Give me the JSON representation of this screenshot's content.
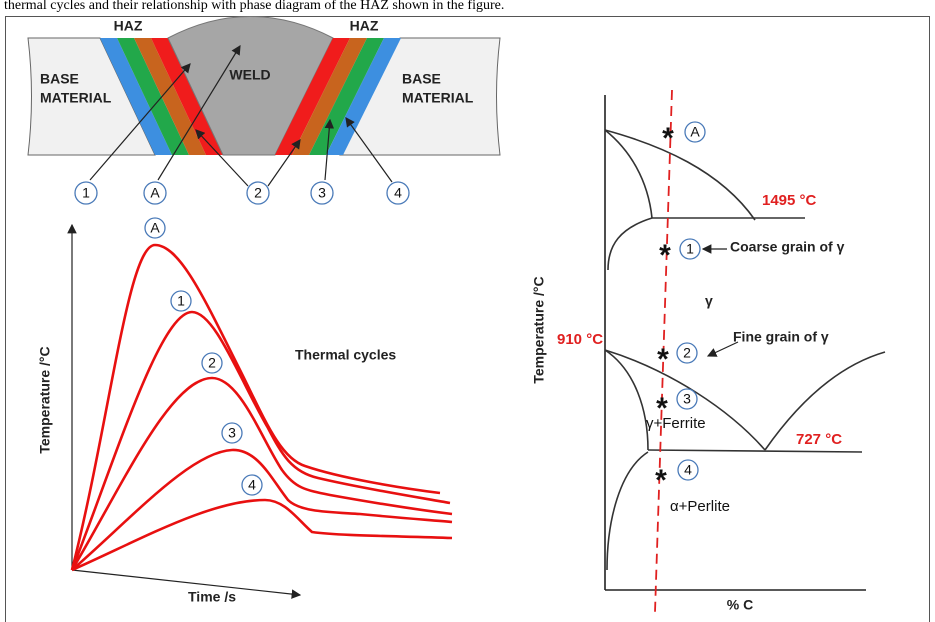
{
  "caption": "thermal cycles and their relationship with phase diagram of the HAZ shown in the figure.",
  "weld_section": {
    "haz_left": "HAZ",
    "haz_right": "HAZ",
    "base_left": [
      "BASE",
      "MATERIAL"
    ],
    "base_right": [
      "BASE",
      "MATERIAL"
    ],
    "weld": "WELD",
    "markers": [
      "1",
      "A",
      "2",
      "3",
      "4"
    ]
  },
  "thermal_cycles": {
    "title": "Thermal cycles",
    "y_axis_label": "Temperature /°C",
    "x_axis_label": "Time /s",
    "markers": [
      "A",
      "1",
      "2",
      "3",
      "4"
    ]
  },
  "phase_diagram": {
    "y_axis_label": "Temperature /°C",
    "x_axis_label": "% C",
    "markers": [
      "A",
      "1",
      "2",
      "3",
      "4"
    ],
    "temperatures": [
      "1495 °C",
      "910 °C",
      "727 °C"
    ],
    "regions": [
      "Coarse grain of γ",
      "γ",
      "Fine grain of γ",
      "γ+Ferrite",
      "α+Perlite"
    ]
  }
}
